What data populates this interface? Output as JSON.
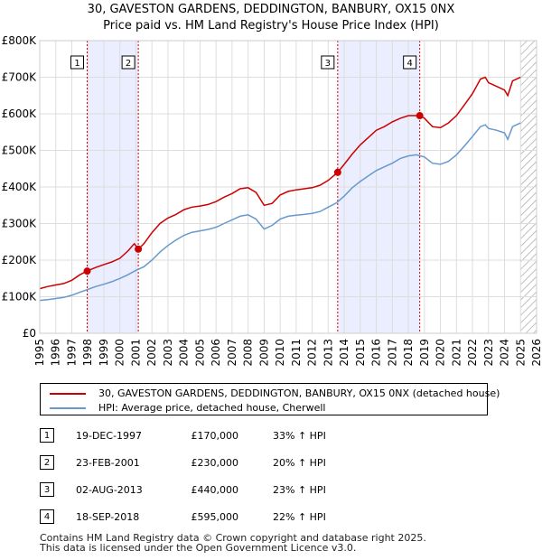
{
  "chart_data": {
    "type": "line",
    "title": "30, GAVESTON GARDENS, DEDDINGTON, BANBURY, OX15 0NX",
    "subtitle": "Price paid vs. HM Land Registry's House Price Index (HPI)",
    "xlabel": "",
    "ylabel": "",
    "xlim": [
      1995,
      2026
    ],
    "ylim": [
      0,
      800000
    ],
    "y_ticks": [
      {
        "value": 0,
        "label": "£0"
      },
      {
        "value": 100000,
        "label": "£100K"
      },
      {
        "value": 200000,
        "label": "£200K"
      },
      {
        "value": 300000,
        "label": "£300K"
      },
      {
        "value": 400000,
        "label": "£400K"
      },
      {
        "value": 500000,
        "label": "£500K"
      },
      {
        "value": 600000,
        "label": "£600K"
      },
      {
        "value": 700000,
        "label": "£700K"
      },
      {
        "value": 800000,
        "label": "£800K"
      }
    ],
    "x_ticks": [
      "1995",
      "1996",
      "1997",
      "1998",
      "1999",
      "2000",
      "2001",
      "2002",
      "2003",
      "2004",
      "2005",
      "2006",
      "2007",
      "2008",
      "2009",
      "2010",
      "2011",
      "2012",
      "2013",
      "2014",
      "2015",
      "2016",
      "2017",
      "2018",
      "2019",
      "2020",
      "2021",
      "2022",
      "2023",
      "2024",
      "2025",
      "2026"
    ],
    "grid": true,
    "data_end": 2025.0,
    "colors": {
      "property": "#cc0000",
      "hpi": "#6699cc",
      "band": "#ebeeff",
      "vline": "#cc0000",
      "hatch": "#aaaaaa"
    },
    "series": [
      {
        "name": "30, GAVESTON GARDENS, DEDDINGTON, BANBURY, OX15 0NX (detached house)",
        "color": "#cc0000",
        "points": [
          [
            1995.0,
            122000
          ],
          [
            1995.5,
            128000
          ],
          [
            1996.0,
            132000
          ],
          [
            1996.5,
            136000
          ],
          [
            1997.0,
            145000
          ],
          [
            1997.5,
            160000
          ],
          [
            1997.96,
            170000
          ],
          [
            1998.5,
            180000
          ],
          [
            1999.0,
            188000
          ],
          [
            1999.5,
            195000
          ],
          [
            2000.0,
            205000
          ],
          [
            2000.5,
            225000
          ],
          [
            2000.9,
            245000
          ],
          [
            2001.15,
            230000
          ],
          [
            2001.5,
            245000
          ],
          [
            2002.0,
            275000
          ],
          [
            2002.5,
            300000
          ],
          [
            2003.0,
            315000
          ],
          [
            2003.5,
            325000
          ],
          [
            2004.0,
            338000
          ],
          [
            2004.5,
            345000
          ],
          [
            2005.0,
            348000
          ],
          [
            2005.5,
            352000
          ],
          [
            2006.0,
            360000
          ],
          [
            2006.5,
            372000
          ],
          [
            2007.0,
            382000
          ],
          [
            2007.5,
            395000
          ],
          [
            2008.0,
            398000
          ],
          [
            2008.5,
            385000
          ],
          [
            2009.0,
            350000
          ],
          [
            2009.5,
            355000
          ],
          [
            2010.0,
            378000
          ],
          [
            2010.5,
            388000
          ],
          [
            2011.0,
            392000
          ],
          [
            2011.5,
            395000
          ],
          [
            2012.0,
            398000
          ],
          [
            2012.5,
            405000
          ],
          [
            2013.0,
            418000
          ],
          [
            2013.59,
            440000
          ],
          [
            2014.0,
            462000
          ],
          [
            2014.5,
            490000
          ],
          [
            2015.0,
            515000
          ],
          [
            2015.5,
            535000
          ],
          [
            2016.0,
            555000
          ],
          [
            2016.5,
            565000
          ],
          [
            2017.0,
            578000
          ],
          [
            2017.5,
            588000
          ],
          [
            2018.0,
            595000
          ],
          [
            2018.71,
            595000
          ],
          [
            2019.0,
            588000
          ],
          [
            2019.5,
            565000
          ],
          [
            2020.0,
            562000
          ],
          [
            2020.5,
            575000
          ],
          [
            2021.0,
            595000
          ],
          [
            2021.5,
            625000
          ],
          [
            2022.0,
            655000
          ],
          [
            2022.5,
            695000
          ],
          [
            2022.8,
            700000
          ],
          [
            2023.0,
            685000
          ],
          [
            2023.5,
            675000
          ],
          [
            2024.0,
            665000
          ],
          [
            2024.2,
            650000
          ],
          [
            2024.5,
            690000
          ],
          [
            2025.0,
            700000
          ]
        ]
      },
      {
        "name": "HPI: Average price, detached house, Cherwell",
        "color": "#6699cc",
        "points": [
          [
            1995.0,
            90000
          ],
          [
            1995.5,
            92000
          ],
          [
            1996.0,
            95000
          ],
          [
            1996.5,
            98000
          ],
          [
            1997.0,
            104000
          ],
          [
            1997.5,
            112000
          ],
          [
            1998.0,
            120000
          ],
          [
            1998.5,
            128000
          ],
          [
            1999.0,
            134000
          ],
          [
            1999.5,
            141000
          ],
          [
            2000.0,
            150000
          ],
          [
            2000.5,
            160000
          ],
          [
            2001.0,
            172000
          ],
          [
            2001.5,
            182000
          ],
          [
            2002.0,
            200000
          ],
          [
            2002.5,
            222000
          ],
          [
            2003.0,
            240000
          ],
          [
            2003.5,
            255000
          ],
          [
            2004.0,
            268000
          ],
          [
            2004.5,
            276000
          ],
          [
            2005.0,
            280000
          ],
          [
            2005.5,
            284000
          ],
          [
            2006.0,
            290000
          ],
          [
            2006.5,
            300000
          ],
          [
            2007.0,
            310000
          ],
          [
            2007.5,
            320000
          ],
          [
            2008.0,
            324000
          ],
          [
            2008.5,
            312000
          ],
          [
            2009.0,
            285000
          ],
          [
            2009.5,
            295000
          ],
          [
            2010.0,
            312000
          ],
          [
            2010.5,
            320000
          ],
          [
            2011.0,
            323000
          ],
          [
            2011.5,
            325000
          ],
          [
            2012.0,
            328000
          ],
          [
            2012.5,
            333000
          ],
          [
            2013.0,
            345000
          ],
          [
            2013.5,
            356000
          ],
          [
            2014.0,
            375000
          ],
          [
            2014.5,
            398000
          ],
          [
            2015.0,
            415000
          ],
          [
            2015.5,
            430000
          ],
          [
            2016.0,
            445000
          ],
          [
            2016.5,
            455000
          ],
          [
            2017.0,
            465000
          ],
          [
            2017.5,
            478000
          ],
          [
            2018.0,
            485000
          ],
          [
            2018.5,
            488000
          ],
          [
            2019.0,
            482000
          ],
          [
            2019.5,
            465000
          ],
          [
            2020.0,
            462000
          ],
          [
            2020.5,
            470000
          ],
          [
            2021.0,
            488000
          ],
          [
            2021.5,
            512000
          ],
          [
            2022.0,
            538000
          ],
          [
            2022.5,
            565000
          ],
          [
            2022.8,
            570000
          ],
          [
            2023.0,
            560000
          ],
          [
            2023.5,
            555000
          ],
          [
            2024.0,
            548000
          ],
          [
            2024.2,
            530000
          ],
          [
            2024.5,
            565000
          ],
          [
            2025.0,
            575000
          ]
        ]
      }
    ],
    "sales": [
      {
        "label": "1",
        "x": 1997.96,
        "y": 170000
      },
      {
        "label": "2",
        "x": 2001.15,
        "y": 230000
      },
      {
        "label": "3",
        "x": 2013.59,
        "y": 440000
      },
      {
        "label": "4",
        "x": 2018.71,
        "y": 595000
      }
    ],
    "shaded_ranges": [
      [
        1997.96,
        2001.15
      ],
      [
        2013.59,
        2018.71
      ]
    ]
  },
  "legend": {
    "property_label": "30, GAVESTON GARDENS, DEDDINGTON, BANBURY, OX15 0NX (detached house)",
    "hpi_label": "HPI: Average price, detached house, Cherwell"
  },
  "sales_table": [
    {
      "num": "1",
      "date": "19-DEC-1997",
      "price": "£170,000",
      "hpi": "33% ↑ HPI"
    },
    {
      "num": "2",
      "date": "23-FEB-2001",
      "price": "£230,000",
      "hpi": "20% ↑ HPI"
    },
    {
      "num": "3",
      "date": "02-AUG-2013",
      "price": "£440,000",
      "hpi": "23% ↑ HPI"
    },
    {
      "num": "4",
      "date": "18-SEP-2018",
      "price": "£595,000",
      "hpi": "22% ↑ HPI"
    }
  ],
  "footer": {
    "line1": "Contains HM Land Registry data © Crown copyright and database right 2025.",
    "line2": "This data is licensed under the Open Government Licence v3.0."
  }
}
